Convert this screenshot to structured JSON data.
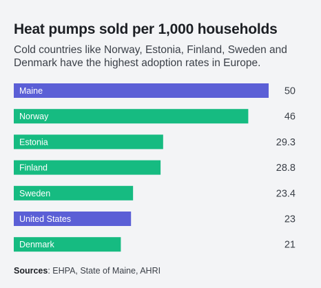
{
  "header": {
    "title": "Heat pumps sold per 1,000 households",
    "subtitle": "Cold countries like Norway, Estonia, Finland, Sweden and Denmark have the highest adoption rates in Europe."
  },
  "footer": {
    "sources_label": "Sources",
    "sources_text": ": EHPA, State of Maine, AHRI"
  },
  "colors": {
    "europe": "#16bb81",
    "us": "#5b5fd6"
  },
  "chart_data": {
    "type": "bar",
    "orientation": "horizontal",
    "categories": [
      "Maine",
      "Norway",
      "Estonia",
      "Finland",
      "Sweden",
      "United States",
      "Denmark"
    ],
    "values": [
      50,
      46,
      29.3,
      28.8,
      23.4,
      23,
      21
    ],
    "value_labels": [
      "50",
      "46",
      "29.3",
      "28.8",
      "23.4",
      "23",
      "21"
    ],
    "bar_colors": [
      "#5b5fd6",
      "#16bb81",
      "#16bb81",
      "#16bb81",
      "#16bb81",
      "#5b5fd6",
      "#16bb81"
    ],
    "xlim": [
      0,
      50
    ],
    "grid": false,
    "legend": "none"
  }
}
